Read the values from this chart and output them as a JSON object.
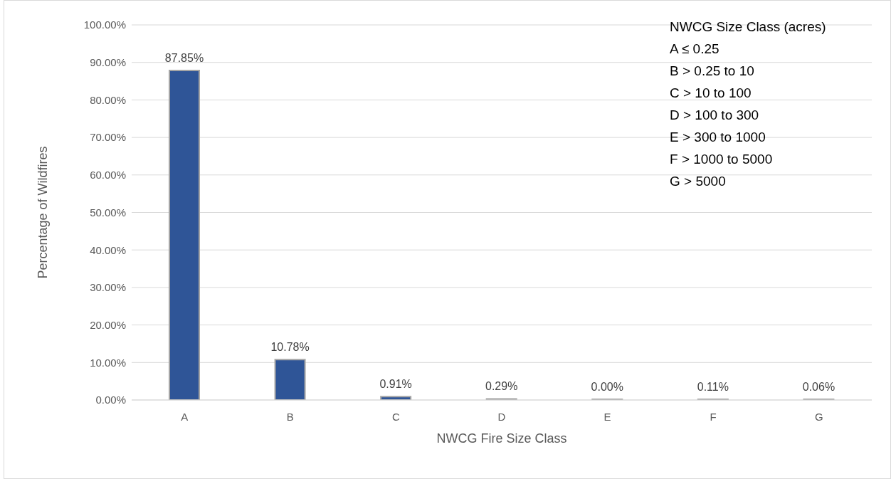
{
  "chart_data": {
    "type": "bar",
    "xlabel": "NWCG Fire Size Class",
    "ylabel": "Percentage of Wildfires",
    "categories": [
      "A",
      "B",
      "C",
      "D",
      "E",
      "F",
      "G"
    ],
    "values": [
      87.85,
      10.78,
      0.91,
      0.29,
      0.0,
      0.11,
      0.06
    ],
    "value_labels": [
      "87.85%",
      "10.78%",
      "0.91%",
      "0.29%",
      "0.00%",
      "0.11%",
      "0.06%"
    ],
    "color": "#2f5597",
    "ylim": [
      0,
      100
    ],
    "yticks": [
      {
        "value": 0,
        "label": "0.00%"
      },
      {
        "value": 10,
        "label": "10.00%"
      },
      {
        "value": 20,
        "label": "20.00%"
      },
      {
        "value": 30,
        "label": "30.00%"
      },
      {
        "value": 40,
        "label": "40.00%"
      },
      {
        "value": 50,
        "label": "50.00%"
      },
      {
        "value": 60,
        "label": "60.00%"
      },
      {
        "value": 70,
        "label": "70.00%"
      },
      {
        "value": 80,
        "label": "80.00%"
      },
      {
        "value": 90,
        "label": "90.00%"
      },
      {
        "value": 100,
        "label": "100.00%"
      }
    ],
    "grid": "y",
    "annotations": [
      "NWCG Size Class (acres)",
      "A ≤ 0.25",
      "B > 0.25 to 10",
      "C > 10 to 100",
      "D > 100 to 300",
      "E > 300 to 1000",
      "F > 1000 to 5000",
      "G > 5000"
    ]
  }
}
